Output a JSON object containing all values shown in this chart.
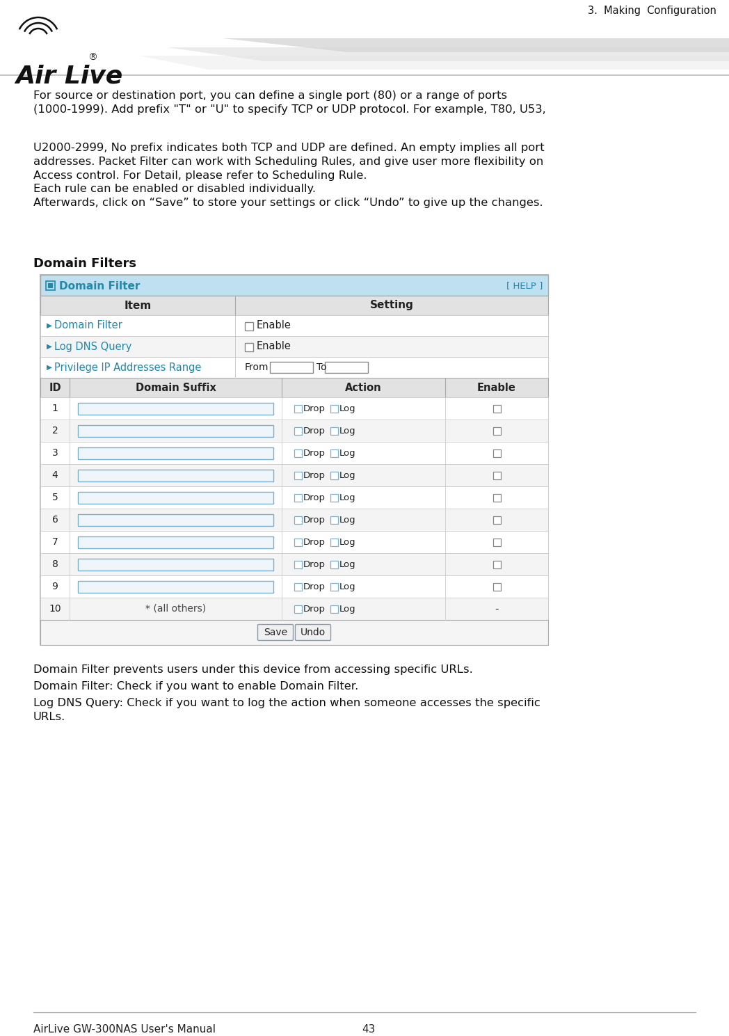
{
  "title_header": "3.  Making  Configuration",
  "page_bg": "#ffffff",
  "body_text_1": "For source or destination port, you can define a single port (80) or a range of ports\n(1000-1999). Add prefix \"T\" or \"U\" to specify TCP or UDP protocol. For example, T80, U53,",
  "body_text_2": "U2000-2999, No prefix indicates both TCP and UDP are defined. An empty implies all port\naddresses. Packet Filter can work with Scheduling Rules, and give user more flexibility on\nAccess control. For Detail, please refer to Scheduling Rule.\nEach rule can be enabled or disabled individually.\nAfterwards, click on “Save” to store your settings or click “Undo” to give up the changes.",
  "section_title": "Domain Filters",
  "help_text": "[ HELP ]",
  "domain_filter_header": "Domain Filter",
  "item_col": "Item",
  "setting_col": "Setting",
  "rows_top": [
    "Domain Filter",
    "Log DNS Query",
    "Privilege IP Addresses Range"
  ],
  "data_rows": [
    "1",
    "2",
    "3",
    "4",
    "5",
    "6",
    "7",
    "8",
    "9",
    "10"
  ],
  "col_id": "ID",
  "col_domain": "Domain Suffix",
  "col_action": "Action",
  "col_enable": "Enable",
  "footer_text1": "Domain Filter prevents users under this device from accessing specific URLs.",
  "footer_text2": "Domain Filter: Check if you want to enable Domain Filter.",
  "footer_text3": "Log DNS Query: Check if you want to log the action when someone accesses the specific\nURLs.",
  "bottom_left": "AirLive GW-300NAS User's Manual",
  "bottom_right": "43",
  "teal_color": "#2288aa",
  "title_bar_bg": "#bee0f0",
  "col_hdr_bg": "#e2e2e2",
  "row_alt_bg": "#f4f4f4",
  "input_border": "#7ab0cc",
  "input_bg": "#eef6fb",
  "border_color": "#aaaaaa",
  "inner_border": "#cccccc",
  "sweep_color": "#d8d8d8",
  "btn_border": "#8899aa",
  "btn_bg": "#f0f0f0"
}
